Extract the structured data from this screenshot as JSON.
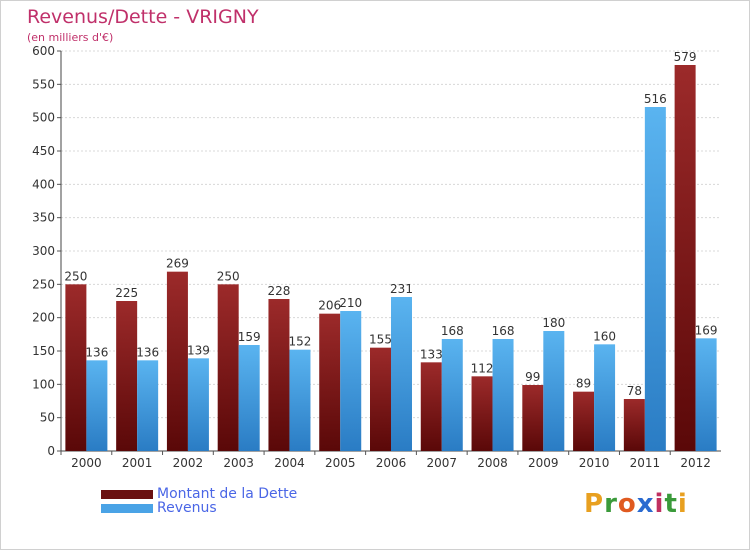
{
  "header": {
    "title": "Revenus/Dette - VRIGNY",
    "subtitle": "(en milliers d'€)"
  },
  "chart_data": {
    "type": "bar",
    "categories": [
      "2000",
      "2001",
      "2002",
      "2003",
      "2004",
      "2005",
      "2006",
      "2007",
      "2008",
      "2009",
      "2010",
      "2011",
      "2012"
    ],
    "series": [
      {
        "name": "Montant de la Dette",
        "values": [
          250,
          225,
          269,
          250,
          228,
          206,
          155,
          133,
          112,
          99,
          89,
          78,
          579
        ],
        "color": "#7a1a1a"
      },
      {
        "name": "Revenus",
        "values": [
          136,
          136,
          139,
          159,
          152,
          210,
          231,
          168,
          168,
          180,
          160,
          516,
          169
        ],
        "color": "#4aa3e6"
      }
    ],
    "ylim": [
      0,
      600
    ],
    "yticks": [
      0,
      50,
      100,
      150,
      200,
      250,
      300,
      350,
      400,
      450,
      500,
      550,
      600
    ],
    "grid": true,
    "legend_position": "bottom-left"
  },
  "legend": {
    "items": [
      {
        "label": "Montant de la Dette",
        "color": "#7a1a1a"
      },
      {
        "label": "Revenus",
        "color": "#4aa3e6"
      }
    ]
  },
  "logo": {
    "letters": [
      "P",
      "r",
      "o",
      "x",
      "i",
      "t",
      "i"
    ],
    "colors": [
      "#e8a020",
      "#3a9a3a",
      "#e05a20",
      "#2a6ad0",
      "#c03060",
      "#3a9a3a",
      "#e8a020"
    ]
  }
}
